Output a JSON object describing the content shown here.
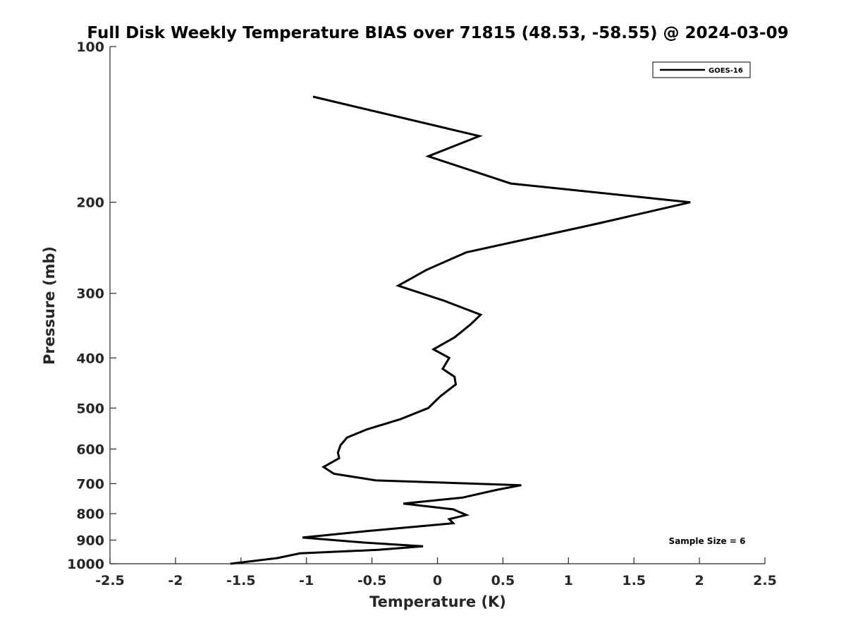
{
  "chart_data": {
    "type": "line",
    "title": "Full Disk Weekly Temperature BIAS over 71815 (48.53, -58.55) @ 2024-03-09",
    "xlabel": "Temperature (K)",
    "ylabel": "Pressure (mb)",
    "xlim": [
      -2.5,
      2.5
    ],
    "ylim": [
      1000,
      100
    ],
    "y_scale": "log",
    "x_ticks": [
      -2.5,
      -2,
      -1.5,
      -1,
      -0.5,
      0,
      0.5,
      1,
      1.5,
      2,
      2.5
    ],
    "x_tick_labels": [
      "-2.5",
      "-2",
      "-1.5",
      "-1",
      "-0.5",
      "0",
      "0.5",
      "1",
      "1.5",
      "2",
      "2.5"
    ],
    "y_ticks": [
      100,
      200,
      300,
      400,
      500,
      600,
      700,
      800,
      900,
      1000
    ],
    "y_tick_labels": [
      "100",
      "200",
      "300",
      "400",
      "500",
      "600",
      "700",
      "800",
      "900",
      "1000"
    ],
    "grid": false,
    "legend_position": "top-right",
    "series": [
      {
        "name": "GOES-16",
        "color": "#000000",
        "points": [
          {
            "x": -0.95,
            "y": 125
          },
          {
            "x": 0.32,
            "y": 149
          },
          {
            "x": -0.07,
            "y": 163
          },
          {
            "x": 0.56,
            "y": 184
          },
          {
            "x": 1.93,
            "y": 200
          },
          {
            "x": 1.22,
            "y": 220
          },
          {
            "x": 0.22,
            "y": 250
          },
          {
            "x": -0.08,
            "y": 270
          },
          {
            "x": -0.3,
            "y": 290
          },
          {
            "x": 0.05,
            "y": 310
          },
          {
            "x": 0.33,
            "y": 330
          },
          {
            "x": 0.25,
            "y": 345
          },
          {
            "x": 0.13,
            "y": 365
          },
          {
            "x": -0.03,
            "y": 385
          },
          {
            "x": 0.09,
            "y": 400
          },
          {
            "x": 0.04,
            "y": 420
          },
          {
            "x": 0.13,
            "y": 435
          },
          {
            "x": 0.14,
            "y": 450
          },
          {
            "x": 0.02,
            "y": 475
          },
          {
            "x": -0.07,
            "y": 500
          },
          {
            "x": -0.28,
            "y": 525
          },
          {
            "x": -0.54,
            "y": 550
          },
          {
            "x": -0.69,
            "y": 570
          },
          {
            "x": -0.74,
            "y": 590
          },
          {
            "x": -0.76,
            "y": 610
          },
          {
            "x": -0.75,
            "y": 625
          },
          {
            "x": -0.87,
            "y": 650
          },
          {
            "x": -0.79,
            "y": 670
          },
          {
            "x": -0.47,
            "y": 690
          },
          {
            "x": 0.64,
            "y": 705
          },
          {
            "x": 0.45,
            "y": 720
          },
          {
            "x": 0.19,
            "y": 745
          },
          {
            "x": -0.26,
            "y": 765
          },
          {
            "x": 0.12,
            "y": 785
          },
          {
            "x": 0.22,
            "y": 805
          },
          {
            "x": 0.09,
            "y": 820
          },
          {
            "x": 0.12,
            "y": 835
          },
          {
            "x": -0.54,
            "y": 865
          },
          {
            "x": -1.03,
            "y": 890
          },
          {
            "x": -0.56,
            "y": 910
          },
          {
            "x": -0.11,
            "y": 925
          },
          {
            "x": -0.45,
            "y": 940
          },
          {
            "x": -1.05,
            "y": 955
          },
          {
            "x": -1.22,
            "y": 975
          },
          {
            "x": -1.58,
            "y": 1000
          }
        ]
      }
    ],
    "annotations": [
      "Sample Size = 6"
    ]
  }
}
